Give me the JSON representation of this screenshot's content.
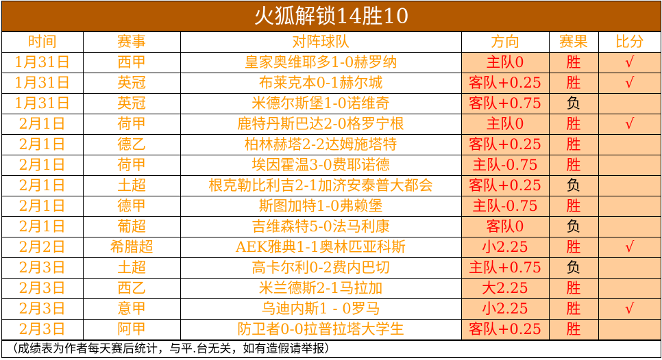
{
  "title": "火狐解锁14胜10",
  "headers": [
    "时间",
    "赛事",
    "对阵球队",
    "方向",
    "赛果",
    "比分"
  ],
  "rows": [
    {
      "time": "1月31日",
      "league": "西甲",
      "match": "皇家奥维耶多1-0赫罗纳",
      "pick": "主队0",
      "result": "胜",
      "check": "√"
    },
    {
      "time": "1月31日",
      "league": "英冠",
      "match": "布莱克本0-1赫尔城",
      "pick": "客队+0.25",
      "result": "胜",
      "check": "√"
    },
    {
      "time": "1月31日",
      "league": "英冠",
      "match": "米德尔斯堡1-0诺维奇",
      "pick": "客队+0.75",
      "result": "负",
      "check": ""
    },
    {
      "time": "2月1日",
      "league": "荷甲",
      "match": "鹿特丹斯巴达2-0格罗宁根",
      "pick": "主队0",
      "result": "胜",
      "check": "√"
    },
    {
      "time": "2月1日",
      "league": "德乙",
      "match": "柏林赫塔2-2达姆施塔特",
      "pick": "客队+0.25",
      "result": "胜",
      "check": ""
    },
    {
      "time": "2月1日",
      "league": "荷甲",
      "match": "埃因霍温3-0费耶诺德",
      "pick": "主队-0.75",
      "result": "胜",
      "check": ""
    },
    {
      "time": "2月1日",
      "league": "土超",
      "match": "根克勒比利吉2-1加济安泰普大都会",
      "pick": "客队+0.25",
      "result": "负",
      "check": ""
    },
    {
      "time": "2月1日",
      "league": "德甲",
      "match": "斯图加特1-0弗赖堡",
      "pick": "主队-0.75",
      "result": "胜",
      "check": ""
    },
    {
      "time": "2月1日",
      "league": "葡超",
      "match": "吉维森特5-0法马利康",
      "pick": "客队0",
      "result": "负",
      "check": ""
    },
    {
      "time": "2月2日",
      "league": "希腊超",
      "match": "AEK雅典1-1奥林匹亚科斯",
      "pick": "小2.25",
      "result": "胜",
      "check": "√"
    },
    {
      "time": "2月3日",
      "league": "土超",
      "match": "高卡尔利0-2费内巴切",
      "pick": "主队+0.75",
      "result": "负",
      "check": ""
    },
    {
      "time": "2月3日",
      "league": "西乙",
      "match": "米兰德斯2-1马拉加",
      "pick": "大2.25",
      "result": "胜",
      "check": ""
    },
    {
      "time": "2月3日",
      "league": "意甲",
      "match": "乌迪内斯1 - 0罗马",
      "pick": "小2.25",
      "result": "胜",
      "check": "√"
    },
    {
      "time": "2月3日",
      "league": "阿甲",
      "match": "防卫者0-0拉普拉塔大学生",
      "pick": "客队+0.25",
      "result": "胜",
      "check": ""
    }
  ],
  "footer": "（成绩表为作者每天赛后统计，与平.台无关，如有造假请举报）",
  "colors": {
    "title_bg": "#b35900",
    "text": "#ff9900",
    "highlight": "#ffcc99",
    "win": "#ff0000",
    "loss": "#000000"
  }
}
